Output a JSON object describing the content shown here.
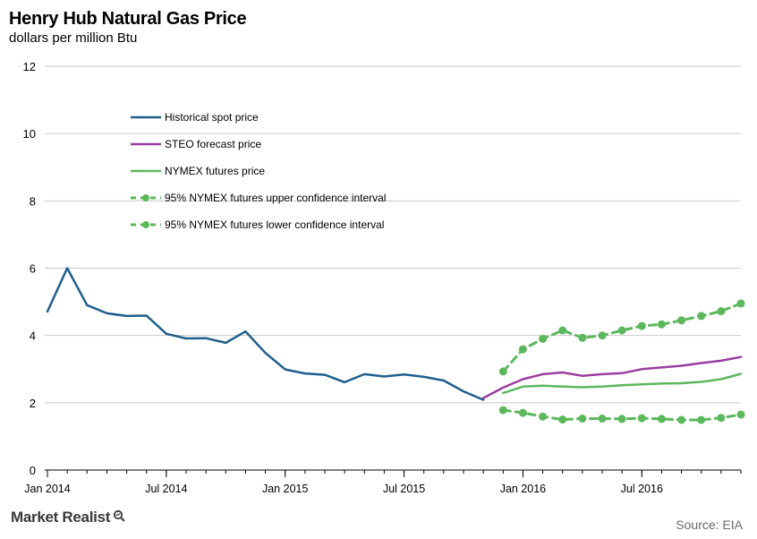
{
  "header": {
    "title": "Henry Hub Natural Gas Price",
    "subtitle": "dollars per million Btu"
  },
  "footer": {
    "brand": "Market Realist",
    "source": "Source: EIA"
  },
  "chart_data": {
    "type": "line",
    "title": "Henry Hub Natural Gas Price",
    "ylabel": "dollars per million Btu",
    "xlabel": "",
    "ylim": [
      0,
      12
    ],
    "yticks": [
      0,
      2,
      4,
      6,
      8,
      10,
      12
    ],
    "x_axis_labels": [
      "Jan 2014",
      "Jul 2014",
      "Jan 2015",
      "Jul 2015",
      "Jan 2016",
      "Jul 2016"
    ],
    "x_axis_label_months": [
      "2014-01",
      "2014-07",
      "2015-01",
      "2015-07",
      "2016-01",
      "2016-07"
    ],
    "x_range": [
      "2014-01",
      "2016-12"
    ],
    "grid": "horizontal",
    "legend_position": "upper-left",
    "series": [
      {
        "name": "Historical spot price",
        "color": "#1f5f8b",
        "style": "solid",
        "x": [
          "2014-01",
          "2014-02",
          "2014-03",
          "2014-04",
          "2014-05",
          "2014-06",
          "2014-07",
          "2014-08",
          "2014-09",
          "2014-10",
          "2014-11",
          "2014-12",
          "2015-01",
          "2015-02",
          "2015-03",
          "2015-04",
          "2015-05",
          "2015-06",
          "2015-07",
          "2015-08",
          "2015-09",
          "2015-10",
          "2015-11"
        ],
        "values": [
          4.71,
          6.0,
          4.9,
          4.66,
          4.58,
          4.59,
          4.05,
          3.91,
          3.92,
          3.78,
          4.12,
          3.48,
          2.99,
          2.87,
          2.83,
          2.61,
          2.85,
          2.78,
          2.84,
          2.77,
          2.66,
          2.34,
          2.09
        ]
      },
      {
        "name": "STEO forecast price",
        "color": "#9b3d9e",
        "style": "solid",
        "x": [
          "2015-11",
          "2015-12",
          "2016-01",
          "2016-02",
          "2016-03",
          "2016-04",
          "2016-05",
          "2016-06",
          "2016-07",
          "2016-08",
          "2016-09",
          "2016-10",
          "2016-11",
          "2016-12"
        ],
        "values": [
          2.14,
          2.45,
          2.7,
          2.85,
          2.9,
          2.8,
          2.85,
          2.88,
          3.0,
          3.05,
          3.1,
          3.18,
          3.25,
          3.36
        ]
      },
      {
        "name": "NYMEX futures price",
        "color": "#5cb85c",
        "style": "solid",
        "x": [
          "2015-12",
          "2016-01",
          "2016-02",
          "2016-03",
          "2016-04",
          "2016-05",
          "2016-06",
          "2016-07",
          "2016-08",
          "2016-09",
          "2016-10",
          "2016-11",
          "2016-12"
        ],
        "values": [
          2.29,
          2.48,
          2.51,
          2.48,
          2.46,
          2.48,
          2.52,
          2.55,
          2.57,
          2.58,
          2.62,
          2.7,
          2.86
        ]
      },
      {
        "name": "95% NYMEX futures upper confidence interval",
        "color": "#5cb85c",
        "style": "dashed-markers",
        "x": [
          "2015-12",
          "2016-01",
          "2016-02",
          "2016-03",
          "2016-04",
          "2016-05",
          "2016-06",
          "2016-07",
          "2016-08",
          "2016-09",
          "2016-10",
          "2016-11",
          "2016-12"
        ],
        "values": [
          2.93,
          3.59,
          3.9,
          4.15,
          3.93,
          4.0,
          4.15,
          4.28,
          4.33,
          4.45,
          4.58,
          4.72,
          4.95
        ]
      },
      {
        "name": "95% NYMEX futures lower confidence interval",
        "color": "#5cb85c",
        "style": "dashed-markers",
        "x": [
          "2015-12",
          "2016-01",
          "2016-02",
          "2016-03",
          "2016-04",
          "2016-05",
          "2016-06",
          "2016-07",
          "2016-08",
          "2016-09",
          "2016-10",
          "2016-11",
          "2016-12"
        ],
        "values": [
          1.78,
          1.7,
          1.59,
          1.5,
          1.53,
          1.53,
          1.52,
          1.54,
          1.52,
          1.49,
          1.49,
          1.55,
          1.65
        ]
      }
    ]
  }
}
